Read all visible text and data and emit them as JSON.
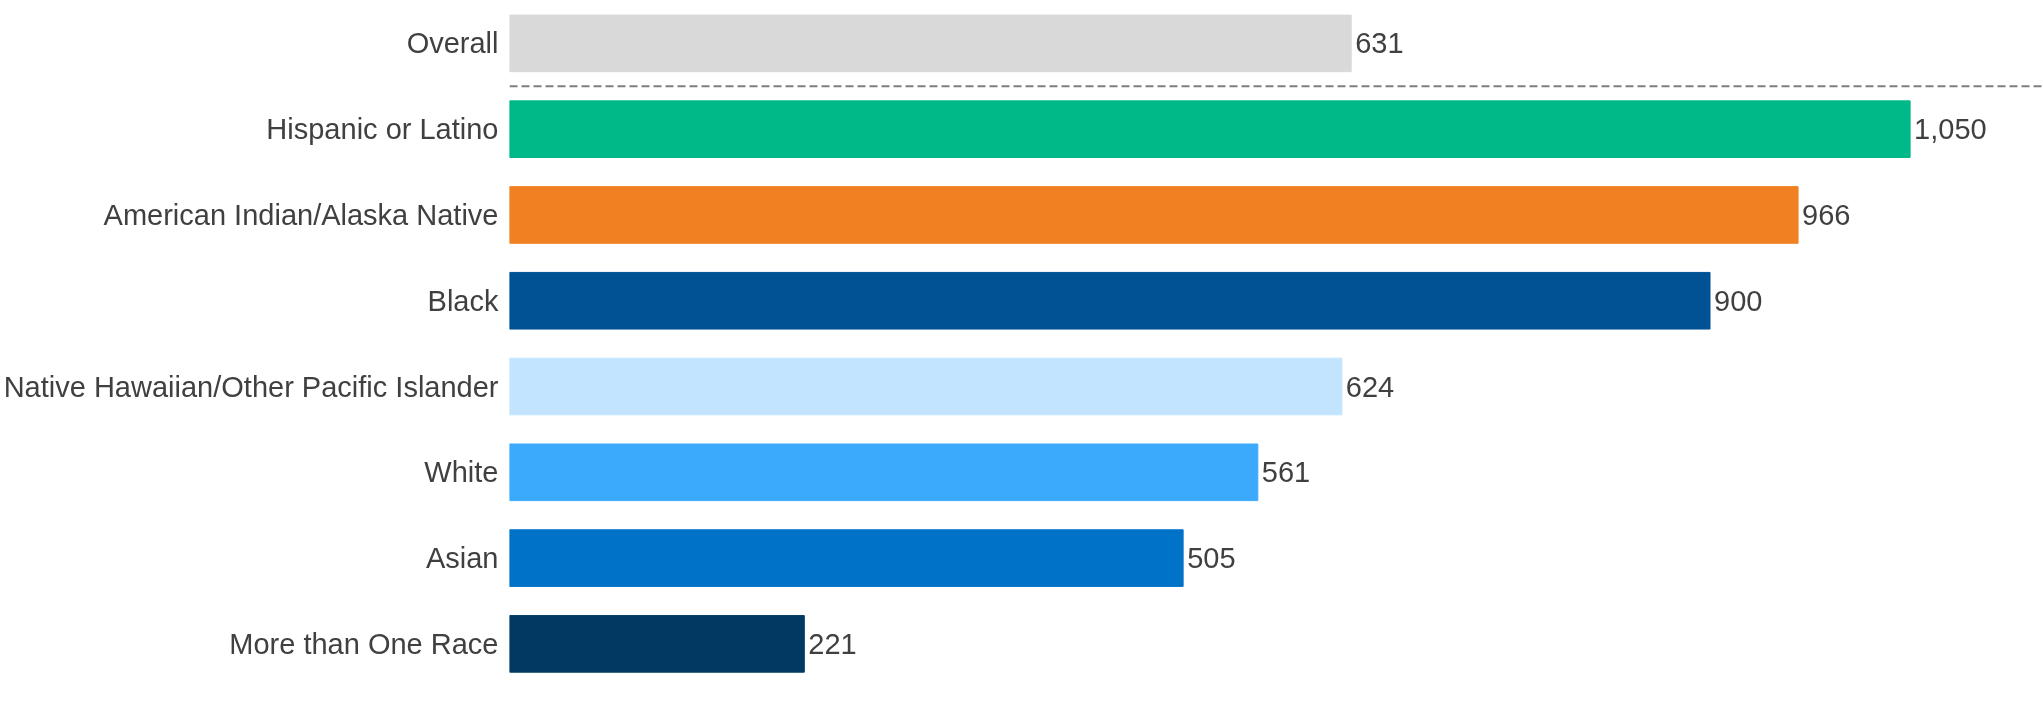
{
  "chart_data": {
    "type": "bar",
    "orientation": "horizontal",
    "categories": [
      "Overall",
      "Hispanic or Latino",
      "American Indian/Alaska Native",
      "Black",
      "Native Hawaiian/Other Pacific Islander",
      "White",
      "Asian",
      "More than One Race"
    ],
    "values": [
      631,
      1050,
      966,
      900,
      624,
      561,
      505,
      221
    ],
    "value_labels": [
      "631",
      "1,050",
      "966",
      "900",
      "624",
      "561",
      "505",
      "221"
    ],
    "colors": [
      "#d9d9d9",
      "#00b988",
      "#f08021",
      "#005295",
      "#c2e4ff",
      "#3caafc",
      "#0073c8",
      "#003a63"
    ],
    "xlim": [
      0,
      1150
    ],
    "tick_labels": "y",
    "grid": false
  }
}
